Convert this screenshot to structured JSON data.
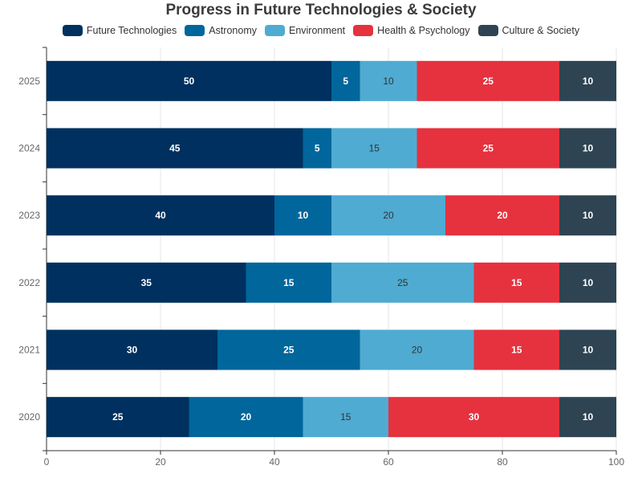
{
  "chart_data": {
    "type": "bar",
    "orientation": "horizontal",
    "stacked": true,
    "title": "Progress in Future Technologies & Society",
    "xlabel": "",
    "ylabel": "",
    "xlim": [
      0,
      100
    ],
    "xticks": [
      "0",
      "20",
      "40",
      "60",
      "80",
      "100"
    ],
    "grid": true,
    "legend_position": "top",
    "categories": [
      "2020",
      "2021",
      "2022",
      "2023",
      "2024",
      "2025"
    ],
    "series": [
      {
        "name": "Future Technologies",
        "color": "#00305f",
        "values": [
          25,
          30,
          35,
          40,
          45,
          50
        ]
      },
      {
        "name": "Astronomy",
        "color": "#00669b",
        "values": [
          20,
          25,
          15,
          10,
          5,
          5
        ]
      },
      {
        "name": "Environment",
        "color": "#4fabd1",
        "values": [
          15,
          20,
          25,
          20,
          15,
          10
        ]
      },
      {
        "name": "Health & Psychology",
        "color": "#e5323e",
        "values": [
          30,
          15,
          15,
          20,
          25,
          25
        ]
      },
      {
        "name": "Culture & Society",
        "color": "#2e4452",
        "values": [
          10,
          10,
          10,
          10,
          10,
          10
        ]
      }
    ]
  }
}
